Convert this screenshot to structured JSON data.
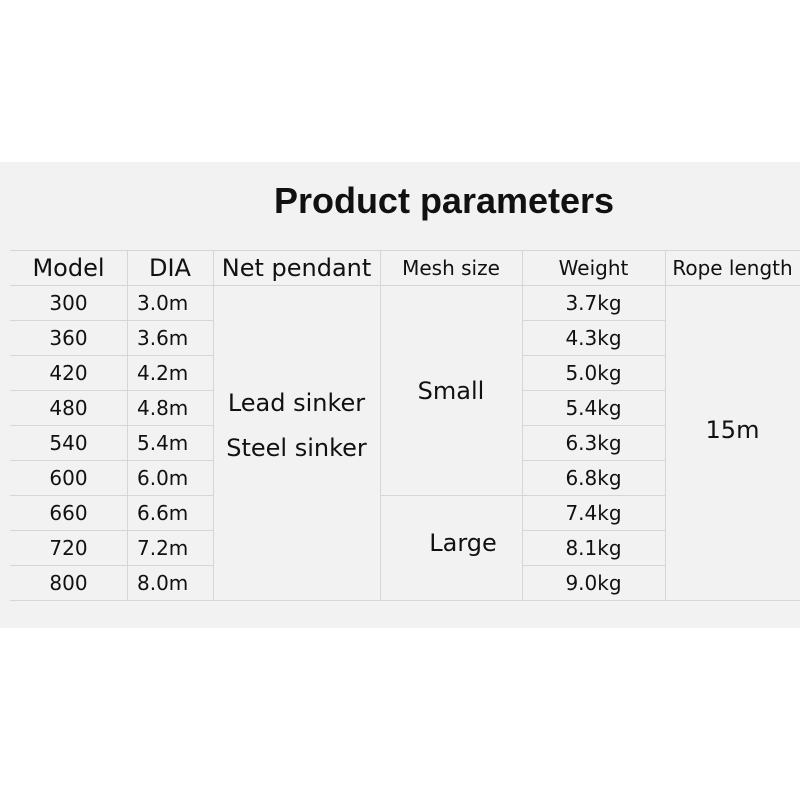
{
  "title": "Product parameters",
  "headers": [
    "Model",
    "DIA",
    "Net pendant",
    "Mesh size",
    "Weight",
    "Rope length"
  ],
  "rows": [
    {
      "model": "300",
      "dia": "3.0m",
      "weight": "3.7kg"
    },
    {
      "model": "360",
      "dia": "3.6m",
      "weight": "4.3kg"
    },
    {
      "model": "420",
      "dia": "4.2m",
      "weight": "5.0kg"
    },
    {
      "model": "480",
      "dia": "4.8m",
      "weight": "5.4kg"
    },
    {
      "model": "540",
      "dia": "5.4m",
      "weight": "6.3kg"
    },
    {
      "model": "600",
      "dia": "6.0m",
      "weight": "6.8kg"
    },
    {
      "model": "660",
      "dia": "6.6m",
      "weight": "7.4kg"
    },
    {
      "model": "720",
      "dia": "7.2m",
      "weight": "8.1kg"
    },
    {
      "model": "800",
      "dia": "8.0m",
      "weight": "9.0kg"
    }
  ],
  "net_pendant": [
    "Lead sinker",
    "Steel sinker"
  ],
  "mesh_size": {
    "small": "Small",
    "large": "Large"
  },
  "rope_length": "15m"
}
